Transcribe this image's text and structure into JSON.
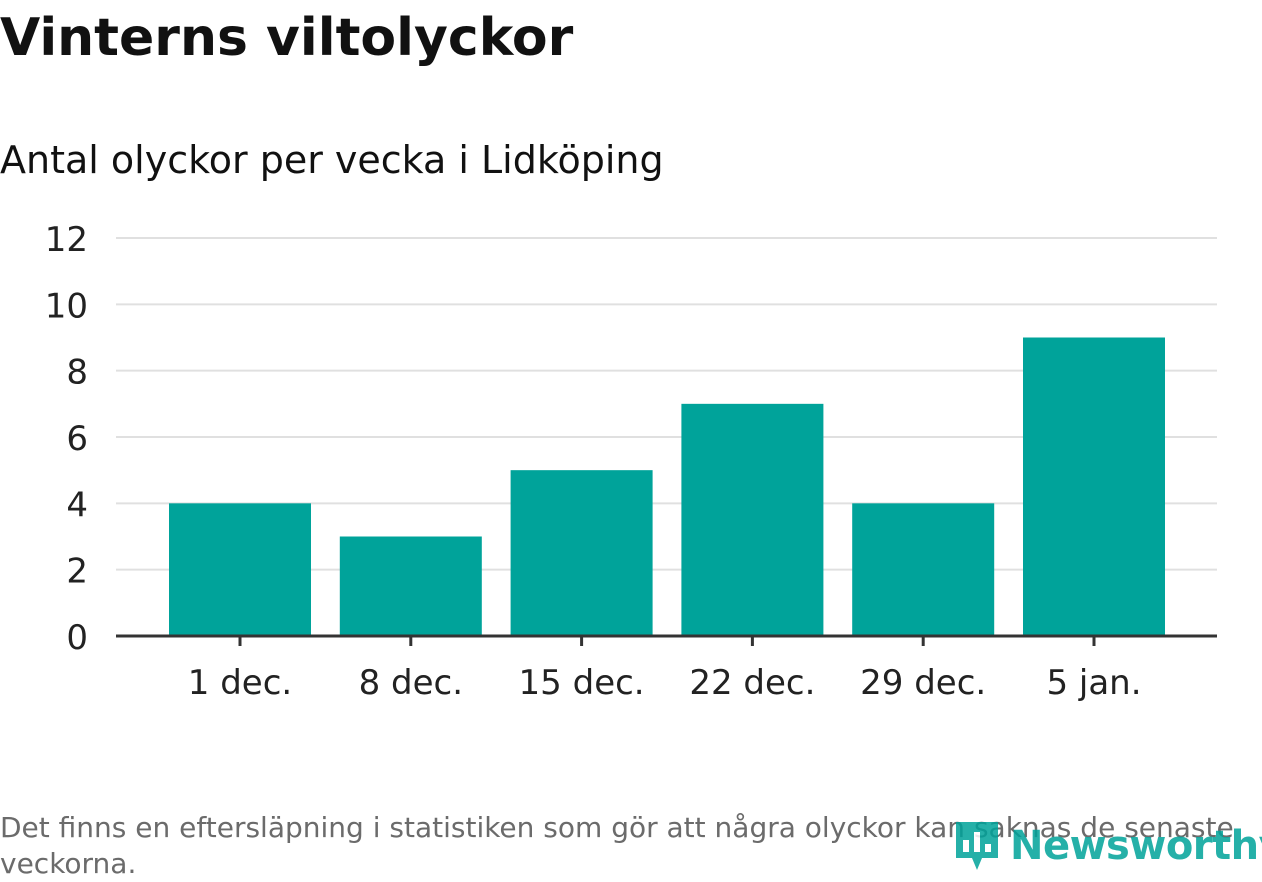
{
  "chart_data": {
    "type": "bar",
    "title": "Vinterns viltolyckor",
    "subtitle": "Antal olyckor per vecka i Lidköping",
    "categories": [
      "1 dec.",
      "8 dec.",
      "15 dec.",
      "22 dec.",
      "29 dec.",
      "5 jan."
    ],
    "values": [
      4,
      3,
      5,
      7,
      4,
      9
    ],
    "xlabel": "",
    "ylabel": "",
    "ylim": [
      0,
      12
    ],
    "yticks": [
      0,
      2,
      4,
      6,
      8,
      10,
      12
    ],
    "grid": true,
    "bar_color": "#00a39a",
    "note": "Det finns en eftersläpning i statistiken som gör att några olyckor kan saknas de senaste veckorna."
  },
  "logo": {
    "name": "Newsworthy",
    "color": "#00a39a"
  }
}
